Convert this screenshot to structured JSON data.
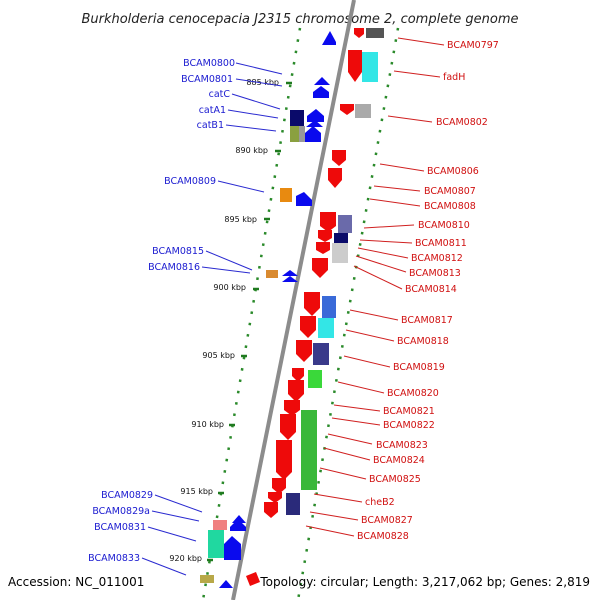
{
  "title": "Burkholderia cenocepacia J2315 chromosome 2, complete genome",
  "accession": "Accession: NC_011001",
  "summary": "Topology: circular; Length: 3,217,062 bp; Genes: 2,819",
  "colors": {
    "forward_gene": "#0a0aee",
    "reverse_gene": "#ee0a0a",
    "backbone": "#8c8c8c",
    "tick": "#2a8a2a"
  },
  "scale_ticks": [
    "885 kbp",
    "890 kbp",
    "895 kbp",
    "900 kbp",
    "905 kbp",
    "910 kbp",
    "915 kbp",
    "920 kbp"
  ],
  "left_genes": [
    "BCAM0800",
    "BCAM0801",
    "catC",
    "catA1",
    "catB1",
    "BCAM0809",
    "BCAM0815",
    "BCAM0816",
    "BCAM0829",
    "BCAM0829a",
    "BCAM0831",
    "BCAM0833"
  ],
  "right_genes": [
    "BCAM0797",
    "fadH",
    "BCAM0802",
    "BCAM0806",
    "BCAM0807",
    "BCAM0808",
    "BCAM0810",
    "BCAM0811",
    "BCAM0812",
    "BCAM0813",
    "BCAM0814",
    "BCAM0817",
    "BCAM0818",
    "BCAM0819",
    "BCAM0820",
    "BCAM0821",
    "BCAM0822",
    "BCAM0823",
    "BCAM0824",
    "BCAM0825",
    "cheB2",
    "BCAM0827",
    "BCAM0828"
  ]
}
